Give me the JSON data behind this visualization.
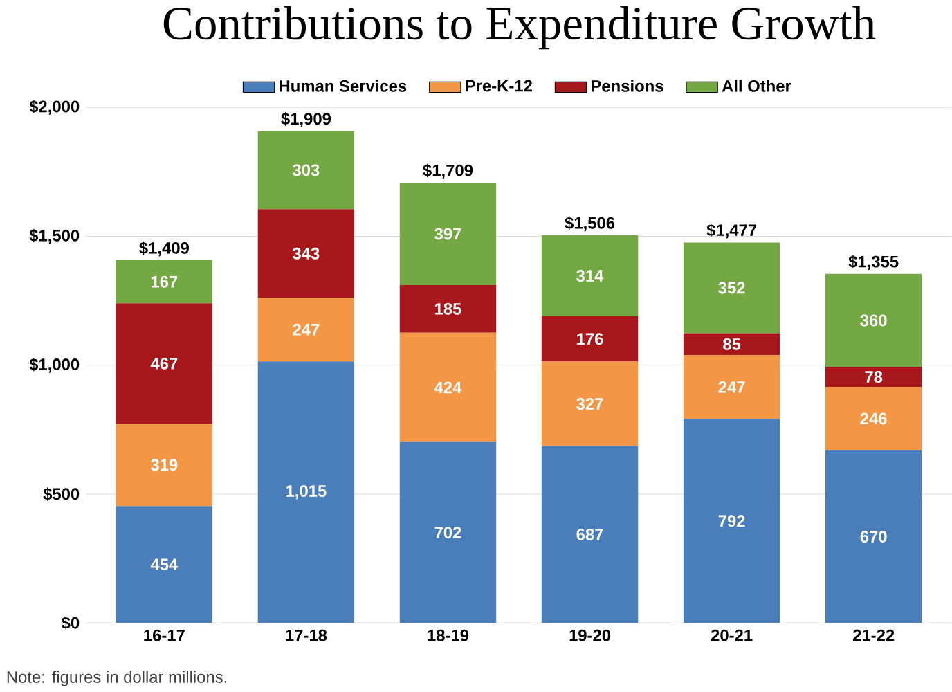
{
  "chart_data": {
    "type": "bar",
    "stacked": true,
    "title": "Contributions to Expenditure Growth",
    "categories": [
      "16-17",
      "17-18",
      "18-19",
      "19-20",
      "20-21",
      "21-22"
    ],
    "series": [
      {
        "name": "Human Services",
        "color": "#4a7ebb",
        "values": [
          454,
          1015,
          702,
          687,
          792,
          670
        ],
        "value_labels": [
          "454",
          "1,015",
          "702",
          "687",
          "792",
          "670"
        ]
      },
      {
        "name": "Pre-K-12",
        "color": "#f39645",
        "values": [
          319,
          247,
          424,
          327,
          247,
          246
        ],
        "value_labels": [
          "319",
          "247",
          "424",
          "327",
          "247",
          "246"
        ]
      },
      {
        "name": "Pensions",
        "color": "#a8171b",
        "values": [
          467,
          343,
          185,
          176,
          85,
          78
        ],
        "value_labels": [
          "467",
          "343",
          "185",
          "176",
          "85",
          "78"
        ]
      },
      {
        "name": "All Other",
        "color": "#73a843",
        "values": [
          167,
          303,
          397,
          314,
          352,
          360
        ],
        "value_labels": [
          "167",
          "303",
          "397",
          "314",
          "352",
          "360"
        ]
      }
    ],
    "totals": [
      "$1,409",
      "$1,909",
      "$1,709",
      "$1,506",
      "$1,477",
      "$1,355"
    ],
    "ylim": [
      0,
      2000
    ],
    "yticks": [
      {
        "value": 0,
        "label": "$0"
      },
      {
        "value": 500,
        "label": "$500"
      },
      {
        "value": 1000,
        "label": "$1,000"
      },
      {
        "value": 1500,
        "label": "$1,500"
      },
      {
        "value": 2000,
        "label": "$2,000"
      }
    ],
    "grid": "y",
    "legend": "top",
    "annotations": [
      "Note: figures in dollar millions."
    ]
  }
}
